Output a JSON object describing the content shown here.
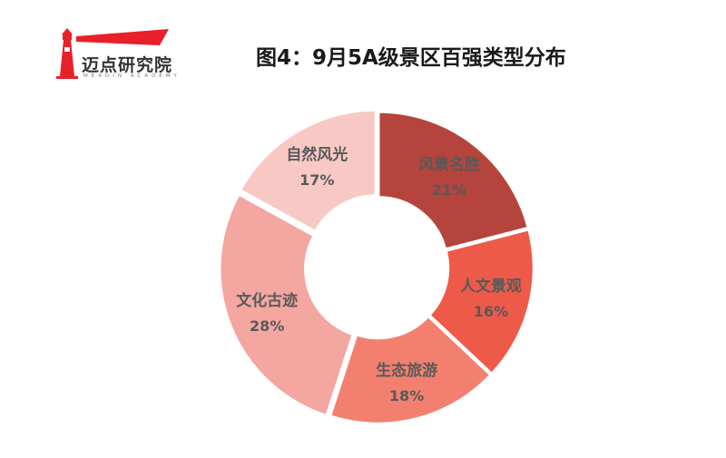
{
  "brand": {
    "name": "迈点研究院",
    "subtitle": "MEADIN ACADEMY",
    "accent": "#e8202a"
  },
  "chart_data": {
    "type": "pie",
    "donut": true,
    "title": "图4：9月5A级景区百强类型分布",
    "slices": [
      {
        "label": "风景名胜",
        "value": 21,
        "pct_label": "21%",
        "color": "#b5453c"
      },
      {
        "label": "人文景观",
        "value": 16,
        "pct_label": "16%",
        "color": "#ee5a4a"
      },
      {
        "label": "生态旅游",
        "value": 18,
        "pct_label": "18%",
        "color": "#f3806f"
      },
      {
        "label": "文化古迹",
        "value": 28,
        "pct_label": "28%",
        "color": "#f4a6a0"
      },
      {
        "label": "自然风光",
        "value": 17,
        "pct_label": "17%",
        "color": "#f8c9c4"
      }
    ]
  }
}
